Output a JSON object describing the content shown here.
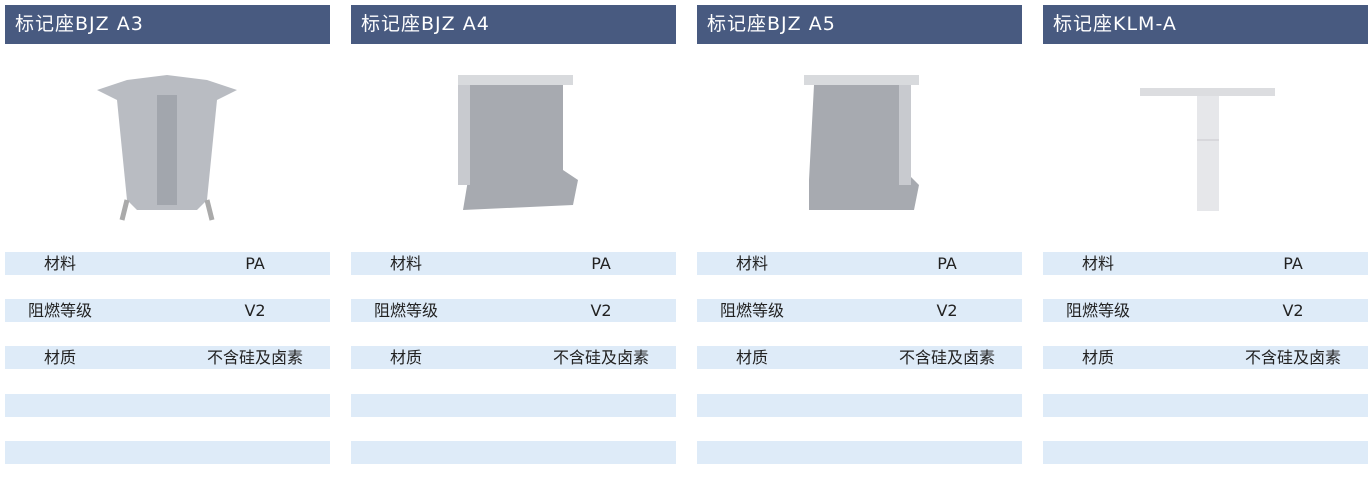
{
  "cards": [
    {
      "title": "标记座BJZ A3",
      "rows": [
        [
          "材料",
          "PA"
        ],
        [
          "阻燃等级",
          "V2"
        ],
        [
          "材质",
          "不含硅及卤素"
        ]
      ]
    },
    {
      "title": "标记座BJZ A4",
      "rows": [
        [
          "材料",
          "PA"
        ],
        [
          "阻燃等级",
          "V2"
        ],
        [
          "材质",
          "不含硅及卤素"
        ]
      ]
    },
    {
      "title": "标记座BJZ A5",
      "rows": [
        [
          "材料",
          "PA"
        ],
        [
          "阻燃等级",
          "V2"
        ],
        [
          "材质",
          "不含硅及卤素"
        ]
      ]
    },
    {
      "title": "标记座KLM-A",
      "rows": [
        [
          "材料",
          "PA"
        ],
        [
          "阻燃等级",
          "V2"
        ],
        [
          "材质",
          "不含硅及卤素"
        ]
      ]
    }
  ]
}
